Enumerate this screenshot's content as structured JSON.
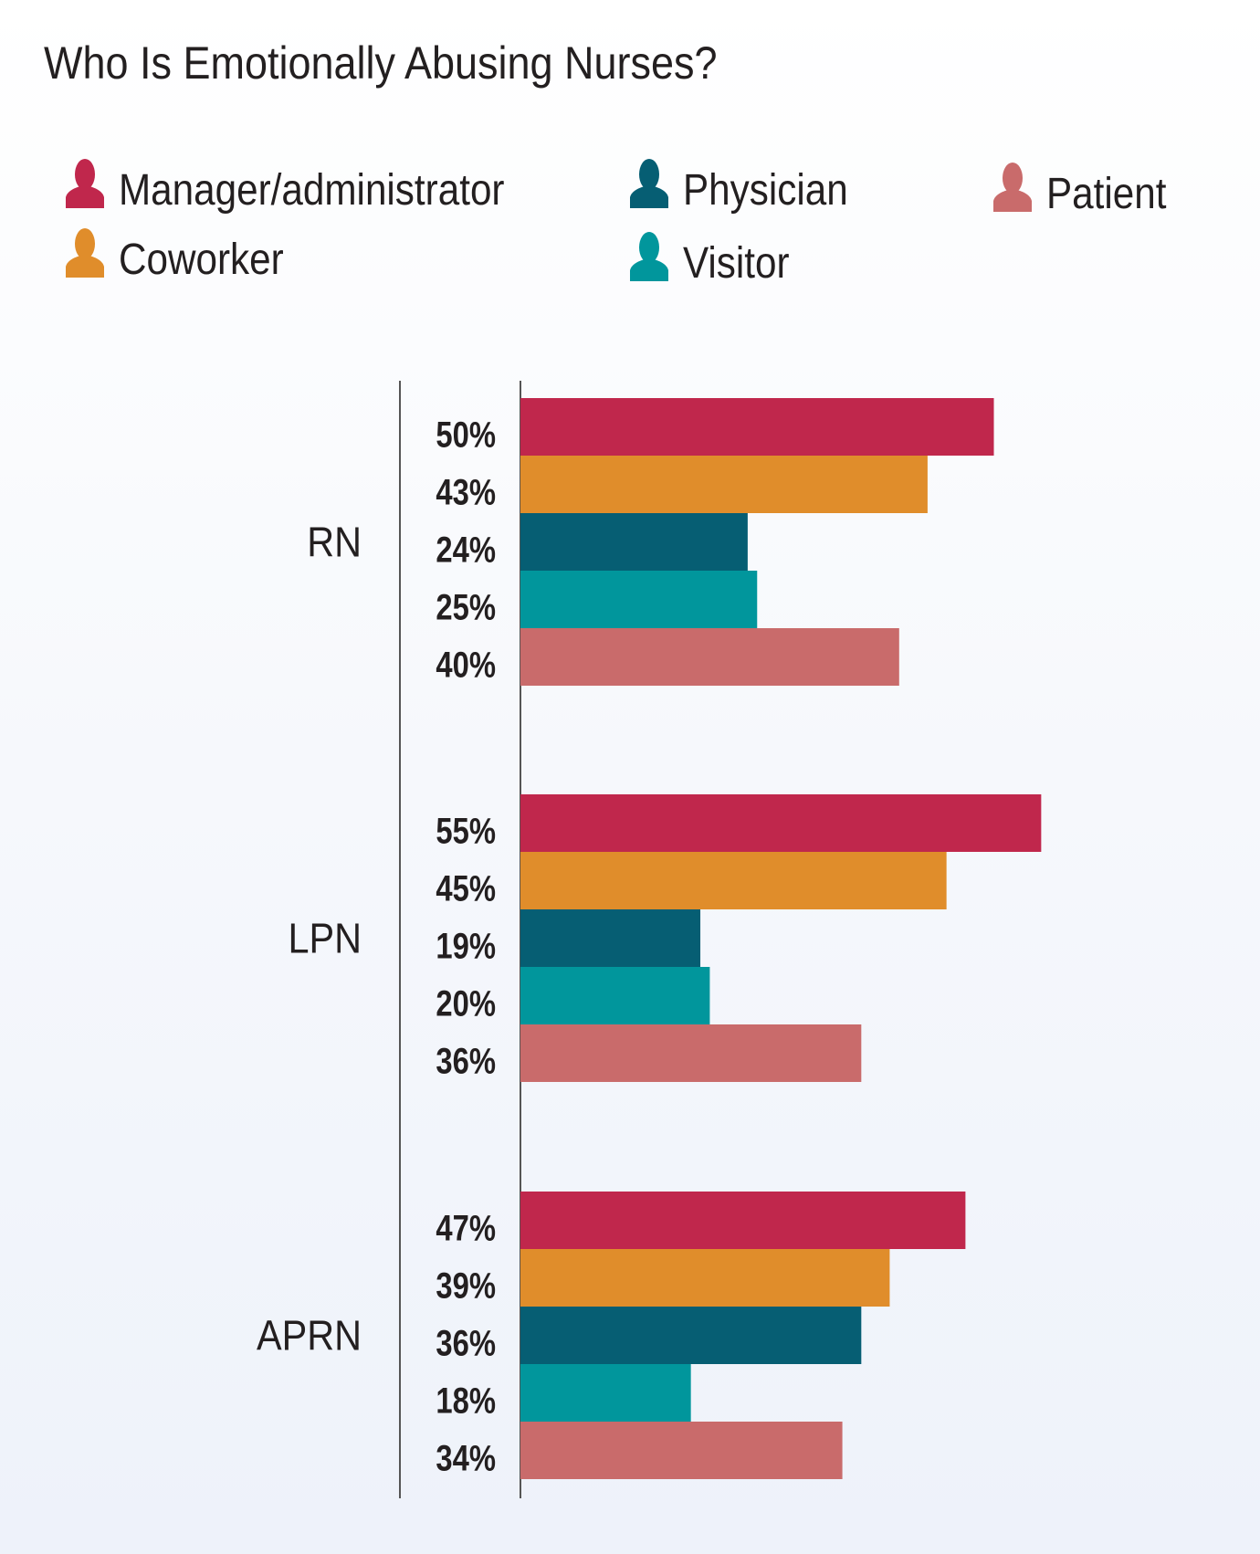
{
  "chart_data": {
    "type": "bar",
    "orientation": "horizontal",
    "title": "Who Is Emotionally Abusing Nurses?",
    "categories": [
      "RN",
      "LPN",
      "APRN"
    ],
    "series": [
      {
        "name": "Manager/administrator",
        "color": "#c0274c",
        "values": [
          50,
          55,
          47
        ]
      },
      {
        "name": "Coworker",
        "color": "#e08d2b",
        "values": [
          43,
          45,
          39
        ]
      },
      {
        "name": "Physician",
        "color": "#065e73",
        "values": [
          24,
          19,
          36
        ]
      },
      {
        "name": "Visitor",
        "color": "#01969c",
        "values": [
          25,
          20,
          18
        ]
      },
      {
        "name": "Patient",
        "color": "#c96b6b",
        "values": [
          40,
          36,
          34
        ]
      }
    ],
    "value_format": "{v}%",
    "legend": {
      "placement": "top",
      "icon": "person-icon",
      "order": [
        "Manager/administrator",
        "Physician",
        "Patient",
        "Coworker",
        "Visitor"
      ]
    },
    "grid": false,
    "xlim": [
      0,
      60
    ]
  }
}
